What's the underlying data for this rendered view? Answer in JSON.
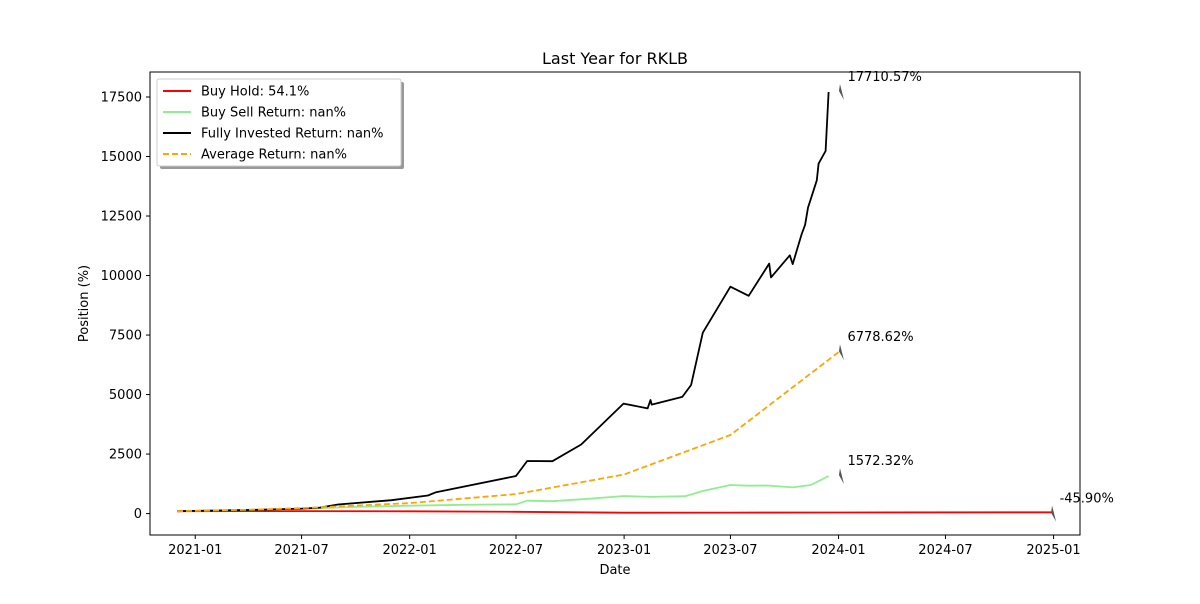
{
  "chart_data": {
    "type": "line",
    "title": "Last Year for RKLB",
    "xlabel": "Date",
    "ylabel": "Position (%)",
    "x_ticks": [
      "2021-01",
      "2021-07",
      "2022-01",
      "2022-07",
      "2023-01",
      "2023-07",
      "2024-01",
      "2024-07",
      "2025-01"
    ],
    "y_ticks": [
      0,
      2500,
      5000,
      7500,
      10000,
      12500,
      15000,
      17500
    ],
    "y_tick_labels": [
      "0",
      "2500",
      "5000",
      "7500",
      "10000",
      "12500",
      "15000",
      "17500"
    ],
    "xlim": [
      "2020-10-16",
      "2025-02-15"
    ],
    "ylim": [
      -900,
      18550
    ],
    "grid": false,
    "legend_position": "top-left",
    "series": [
      {
        "name": "Buy Hold: 54.1%",
        "color": "#ff0000",
        "style": "solid",
        "points": [
          [
            "2020-12-01",
            100
          ],
          [
            "2021-03-01",
            102
          ],
          [
            "2021-07-01",
            103
          ],
          [
            "2022-01-01",
            95
          ],
          [
            "2022-07-01",
            75
          ],
          [
            "2023-01-01",
            35
          ],
          [
            "2023-07-01",
            40
          ],
          [
            "2024-01-01",
            45
          ],
          [
            "2025-01-01",
            54
          ]
        ]
      },
      {
        "name": "Buy Sell Return: nan%",
        "color": "#90ee90",
        "style": "solid",
        "points": [
          [
            "2020-12-01",
            100
          ],
          [
            "2021-03-01",
            140
          ],
          [
            "2021-07-01",
            200
          ],
          [
            "2021-10-01",
            280
          ],
          [
            "2022-01-01",
            330
          ],
          [
            "2022-04-01",
            370
          ],
          [
            "2022-07-01",
            390
          ],
          [
            "2022-07-20",
            540
          ],
          [
            "2022-09-01",
            520
          ],
          [
            "2022-11-01",
            620
          ],
          [
            "2023-01-01",
            740
          ],
          [
            "2023-02-15",
            700
          ],
          [
            "2023-04-15",
            730
          ],
          [
            "2023-05-15",
            950
          ],
          [
            "2023-07-01",
            1200
          ],
          [
            "2023-08-01",
            1170
          ],
          [
            "2023-09-01",
            1180
          ],
          [
            "2023-10-15",
            1100
          ],
          [
            "2023-11-15",
            1200
          ],
          [
            "2023-12-15",
            1572.32
          ]
        ]
      },
      {
        "name": "Fully Invested Return: nan%",
        "color": "#000000",
        "style": "solid",
        "points": [
          [
            "2020-12-01",
            100
          ],
          [
            "2021-04-01",
            150
          ],
          [
            "2021-07-01",
            210
          ],
          [
            "2021-08-01",
            250
          ],
          [
            "2021-09-01",
            380
          ],
          [
            "2021-12-01",
            560
          ],
          [
            "2022-02-01",
            760
          ],
          [
            "2022-02-15",
            900
          ],
          [
            "2022-07-01",
            1580
          ],
          [
            "2022-07-20",
            2210
          ],
          [
            "2022-09-01",
            2200
          ],
          [
            "2022-10-20",
            2900
          ],
          [
            "2022-12-31",
            4620
          ],
          [
            "2023-02-10",
            4420
          ],
          [
            "2023-02-15",
            4770
          ],
          [
            "2023-02-17",
            4580
          ],
          [
            "2023-04-10",
            4900
          ],
          [
            "2023-04-25",
            5400
          ],
          [
            "2023-05-15",
            7600
          ],
          [
            "2023-07-01",
            9530
          ],
          [
            "2023-08-01",
            9150
          ],
          [
            "2023-09-05",
            10500
          ],
          [
            "2023-09-08",
            9920
          ],
          [
            "2023-10-10",
            10850
          ],
          [
            "2023-10-15",
            10480
          ],
          [
            "2023-10-30",
            11720
          ],
          [
            "2023-11-05",
            12130
          ],
          [
            "2023-11-10",
            12850
          ],
          [
            "2023-11-25",
            14000
          ],
          [
            "2023-11-28",
            14700
          ],
          [
            "2023-12-10",
            15230
          ],
          [
            "2023-12-15",
            17710.57
          ]
        ]
      },
      {
        "name": "Average Return: nan%",
        "color": "#ffa500",
        "style": "dashed",
        "points": [
          [
            "2020-12-01",
            100
          ],
          [
            "2021-04-01",
            160
          ],
          [
            "2021-07-01",
            230
          ],
          [
            "2022-01-01",
            440
          ],
          [
            "2022-07-01",
            820
          ],
          [
            "2023-01-01",
            1640
          ],
          [
            "2023-07-01",
            3300
          ],
          [
            "2024-01-01",
            6778.62
          ]
        ]
      }
    ],
    "annotations": [
      {
        "text": "17710.57%",
        "x": "2024-01-06",
        "y": 17710.57,
        "color": "#555555"
      },
      {
        "text": "6778.62%",
        "x": "2024-01-06",
        "y": 6778.62,
        "color": "#555555"
      },
      {
        "text": "1572.32%",
        "x": "2024-01-06",
        "y": 1572.32,
        "color": "#555555"
      },
      {
        "text": "-45.90%",
        "x": "2025-01-01",
        "y": 0,
        "color": "#555555"
      }
    ]
  }
}
